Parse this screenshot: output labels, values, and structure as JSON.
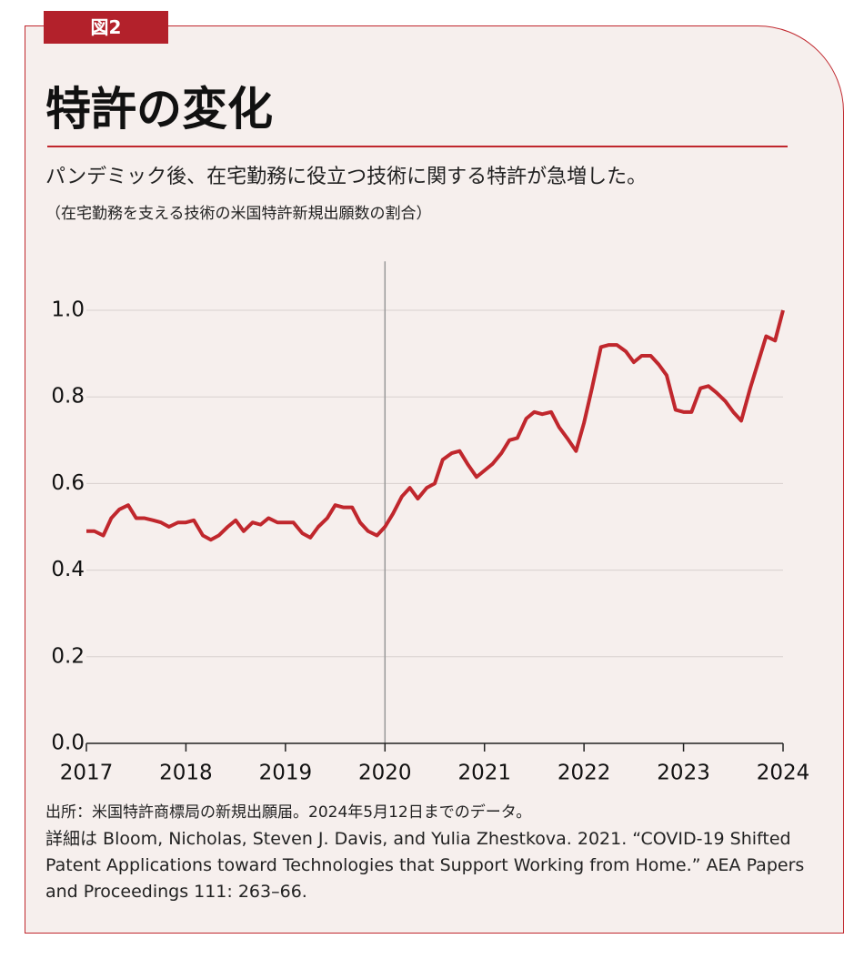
{
  "label": "図2",
  "title": "特許の変化",
  "subtitle": "パンデミック後、在宅勤務に役立つ技術に関する特許が急増した。",
  "note": "（在宅勤務を支える技術の米国特許新規出願数の割合）",
  "chart_data": {
    "type": "line",
    "x": [
      2017.0,
      2017.08,
      2017.17,
      2017.25,
      2017.33,
      2017.42,
      2017.5,
      2017.58,
      2017.67,
      2017.75,
      2017.83,
      2017.92,
      2018.0,
      2018.08,
      2018.17,
      2018.25,
      2018.33,
      2018.42,
      2018.5,
      2018.58,
      2018.67,
      2018.75,
      2018.83,
      2018.92,
      2019.0,
      2019.08,
      2019.17,
      2019.25,
      2019.33,
      2019.42,
      2019.5,
      2019.58,
      2019.67,
      2019.75,
      2019.83,
      2019.92,
      2020.0,
      2020.08,
      2020.17,
      2020.25,
      2020.33,
      2020.42,
      2020.5,
      2020.58,
      2020.67,
      2020.75,
      2020.83,
      2020.92,
      2021.0,
      2021.08,
      2021.17,
      2021.25,
      2021.33,
      2021.42,
      2021.5,
      2021.58,
      2021.67,
      2021.75,
      2021.83,
      2021.92,
      2022.0,
      2022.08,
      2022.17,
      2022.25,
      2022.33,
      2022.42,
      2022.5,
      2022.58,
      2022.67,
      2022.75,
      2022.83,
      2022.92,
      2023.0,
      2023.08,
      2023.17,
      2023.25,
      2023.33,
      2023.42,
      2023.5,
      2023.58,
      2023.67,
      2023.75,
      2023.83,
      2023.92,
      2024.0
    ],
    "series": [
      {
        "color": "#c0272d",
        "values": [
          0.49,
          0.49,
          0.48,
          0.52,
          0.54,
          0.55,
          0.52,
          0.52,
          0.515,
          0.51,
          0.5,
          0.51,
          0.51,
          0.515,
          0.48,
          0.47,
          0.48,
          0.5,
          0.515,
          0.49,
          0.51,
          0.505,
          0.52,
          0.51,
          0.51,
          0.51,
          0.485,
          0.475,
          0.5,
          0.52,
          0.55,
          0.545,
          0.545,
          0.51,
          0.49,
          0.48,
          0.5,
          0.53,
          0.57,
          0.59,
          0.565,
          0.59,
          0.6,
          0.655,
          0.67,
          0.675,
          0.645,
          0.615,
          0.63,
          0.645,
          0.67,
          0.7,
          0.705,
          0.75,
          0.765,
          0.76,
          0.765,
          0.73,
          0.705,
          0.675,
          0.74,
          0.82,
          0.915,
          0.92,
          0.92,
          0.905,
          0.88,
          0.895,
          0.895,
          0.875,
          0.85,
          0.77,
          0.765,
          0.765,
          0.82,
          0.825,
          0.81,
          0.79,
          0.765,
          0.745,
          0.82,
          0.88,
          0.94,
          0.93,
          1.0
        ]
      }
    ],
    "xlim": [
      2017,
      2024
    ],
    "xticks": [
      2017,
      2018,
      2019,
      2020,
      2021,
      2022,
      2023,
      2024
    ],
    "ylim": [
      0,
      1.05
    ],
    "yticks": [
      {
        "value": 0,
        "label": "0.0"
      },
      0.2,
      0.4,
      0.6,
      0.8,
      {
        "value": 1,
        "label": "1.0"
      }
    ],
    "grid": true,
    "highlight_x": 2020
  },
  "source": "出所：米国特許商標局の新規出願届。2024年5月12日までのデータ。",
  "details": "詳細は Bloom, Nicholas, Steven J. Davis, and Yulia Zhestkova. 2021. “COVID-19 Shifted Patent Applications toward Technologies that Support Working from Home.” AEA Papers and Proceedings 111: 263–66."
}
